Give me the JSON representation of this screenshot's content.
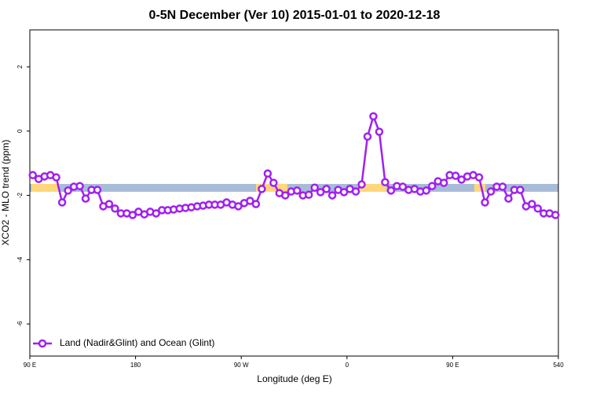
{
  "chart_data": {
    "type": "line",
    "title": "0-5N December (Ver 10)   2015-01-01 to 2020-12-18",
    "x_label": "Longitude (deg E)",
    "y_label": "XCO2 - MLO trend (ppm)",
    "x": [
      92.5,
      97.5,
      102.5,
      107.5,
      112.5,
      117.5,
      122.5,
      127.5,
      132.5,
      137.5,
      142.5,
      147.5,
      152.5,
      157.5,
      162.5,
      167.5,
      172.5,
      177.5,
      182.5,
      187.5,
      192.5,
      197.5,
      202.5,
      207.5,
      212.5,
      217.5,
      222.5,
      227.5,
      232.5,
      237.5,
      242.5,
      247.5,
      252.5,
      257.5,
      262.5,
      267.5,
      272.5,
      277.5,
      282.5,
      287.5,
      292.5,
      297.5,
      302.5,
      307.5,
      312.5,
      317.5,
      322.5,
      327.5,
      332.5,
      337.5,
      342.5,
      347.5,
      352.5,
      357.5,
      362.5,
      367.5,
      372.5,
      377.5,
      382.5,
      387.5,
      392.5,
      397.5,
      402.5,
      407.5,
      412.5,
      417.5,
      422.5,
      427.5,
      432.5,
      437.5,
      442.5,
      447.5,
      452.5,
      457.5,
      462.5,
      467.5,
      472.5,
      477.5,
      482.5,
      487.5,
      492.5,
      497.5,
      502.5,
      507.5,
      512.5,
      517.5,
      522.5,
      527.5,
      532.5,
      537.5
    ],
    "series": [
      {
        "name": "Land (Nadir&Glint) and Ocean (Glint)",
        "color": "#a020f0",
        "values": [
          -1.37,
          -1.49,
          -1.41,
          -1.37,
          -1.44,
          -2.22,
          -1.85,
          -1.73,
          -1.71,
          -2.1,
          -1.83,
          -1.83,
          -2.34,
          -2.27,
          -2.41,
          -2.56,
          -2.56,
          -2.61,
          -2.51,
          -2.59,
          -2.51,
          -2.56,
          -2.46,
          -2.46,
          -2.44,
          -2.41,
          -2.39,
          -2.37,
          -2.34,
          -2.32,
          -2.29,
          -2.29,
          -2.29,
          -2.22,
          -2.29,
          -2.34,
          -2.24,
          -2.17,
          -2.27,
          -1.8,
          -1.32,
          -1.61,
          -1.93,
          -2.0,
          -1.88,
          -1.85,
          -2.0,
          -1.98,
          -1.76,
          -1.9,
          -1.8,
          -2.0,
          -1.83,
          -1.9,
          -1.8,
          -1.88,
          -1.66,
          -0.17,
          0.46,
          -0.02,
          -1.59,
          -1.85,
          -1.71,
          -1.73,
          -1.83,
          -1.8,
          -1.88,
          -1.85,
          -1.71,
          -1.56,
          -1.61,
          -1.37,
          -1.39,
          -1.51,
          -1.41,
          -1.37,
          -1.44,
          -2.22,
          -1.88,
          -1.73,
          -1.73,
          -2.1,
          -1.83,
          -1.83,
          -2.34,
          -2.27,
          -2.41,
          -2.56,
          -2.56,
          -2.61
        ]
      }
    ],
    "xlim": [
      90,
      540
    ],
    "xticks": [
      {
        "value": 90,
        "label": "90 E"
      },
      180,
      {
        "value": 270,
        "label": "90 W"
      },
      {
        "value": 360,
        "label": "0"
      },
      {
        "value": 450,
        "label": "90 E"
      },
      540
    ],
    "ylim": [
      -7,
      3.15
    ],
    "yticks": [
      -6,
      -4,
      -2,
      0,
      2
    ],
    "legend": "bottom-left"
  }
}
